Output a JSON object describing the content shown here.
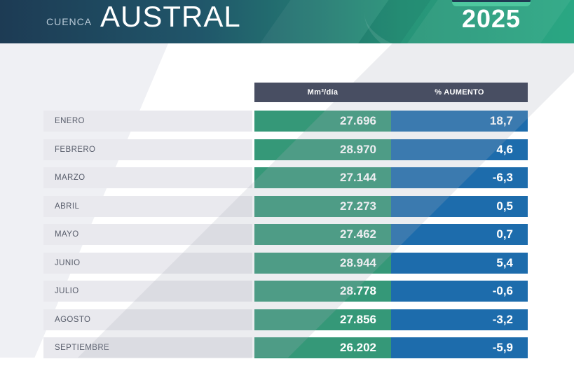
{
  "header": {
    "basin_label": "CUENCA",
    "basin_name": "AUSTRAL",
    "year": "2025",
    "colors": {
      "gradient_left": "#1d3b54",
      "gradient_right": "#2aa783",
      "year_tab_navy": "#1e3a52",
      "year_tab_light_green": "#4ec79f"
    }
  },
  "table": {
    "columns": {
      "value_label": "Mm³/día",
      "pct_label": "% AUMENTO"
    },
    "colors": {
      "header_bg": "#484e62",
      "value_col": "#359878",
      "pct_col": "#1d6cac",
      "month_cell_bg": "#e9e9ee"
    },
    "rows": [
      {
        "month": "ENERO",
        "value": "27.696",
        "pct": "18,7"
      },
      {
        "month": "FEBRERO",
        "value": "28.970",
        "pct": "4,6"
      },
      {
        "month": "MARZO",
        "value": "27.144",
        "pct": "-6,3"
      },
      {
        "month": "ABRIL",
        "value": "27.273",
        "pct": "0,5"
      },
      {
        "month": "MAYO",
        "value": "27.462",
        "pct": "0,7"
      },
      {
        "month": "JUNIO",
        "value": "28.944",
        "pct": "5,4"
      },
      {
        "month": "JULIO",
        "value": "28.778",
        "pct": "-0,6"
      },
      {
        "month": "AGOSTO",
        "value": "27.856",
        "pct": "-3,2"
      },
      {
        "month": "SEPTIEMBRE",
        "value": "26.202",
        "pct": "-5,9"
      }
    ]
  },
  "chart_data": {
    "type": "table",
    "title": "CUENCA AUSTRAL 2025",
    "columns": [
      "Mm³/día",
      "% AUMENTO"
    ],
    "categories": [
      "ENERO",
      "FEBRERO",
      "MARZO",
      "ABRIL",
      "MAYO",
      "JUNIO",
      "JULIO",
      "AGOSTO",
      "SEPTIEMBRE"
    ],
    "series": [
      {
        "name": "Mm³/día",
        "values": [
          27696,
          28970,
          27144,
          27273,
          27462,
          28944,
          28778,
          27856,
          26202
        ]
      },
      {
        "name": "% AUMENTO",
        "values": [
          18.7,
          4.6,
          -6.3,
          0.5,
          0.7,
          5.4,
          -0.6,
          -3.2,
          -5.9
        ]
      }
    ]
  }
}
